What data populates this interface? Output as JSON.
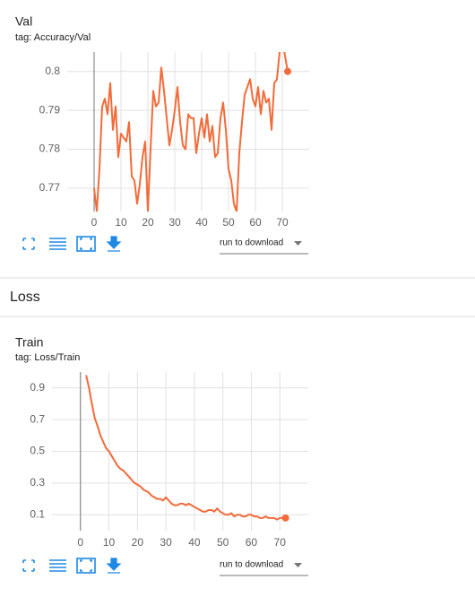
{
  "chart_data": [
    {
      "type": "line",
      "title": "Val",
      "subtitle": "tag: Accuracy/Val",
      "xlim": [
        -10,
        80
      ],
      "xticks": [
        0,
        10,
        20,
        30,
        40,
        50,
        60,
        70
      ],
      "ylim": [
        0.764,
        0.805
      ],
      "yticks": [
        0.77,
        0.78,
        0.79,
        0.8
      ],
      "grid": true,
      "series": [
        {
          "color": "#f26b3a",
          "x": [
            0,
            1,
            2,
            3,
            4,
            5,
            6,
            7,
            8,
            9,
            10,
            11,
            12,
            13,
            14,
            15,
            16,
            17,
            18,
            19,
            20,
            21,
            22,
            23,
            24,
            25,
            26,
            27,
            28,
            29,
            30,
            31,
            32,
            33,
            34,
            35,
            36,
            37,
            38,
            39,
            40,
            41,
            42,
            43,
            44,
            45,
            46,
            47,
            48,
            49,
            50,
            51,
            52,
            53,
            54,
            55,
            56,
            57,
            58,
            59,
            60,
            61,
            62,
            63,
            64,
            65,
            66,
            67,
            68,
            69,
            70,
            72
          ],
          "values": [
            0.77,
            0.764,
            0.775,
            0.791,
            0.793,
            0.789,
            0.797,
            0.785,
            0.791,
            0.778,
            0.784,
            0.783,
            0.782,
            0.787,
            0.773,
            0.772,
            0.766,
            0.771,
            0.778,
            0.782,
            0.764,
            0.78,
            0.795,
            0.791,
            0.792,
            0.801,
            0.795,
            0.788,
            0.781,
            0.785,
            0.79,
            0.796,
            0.787,
            0.781,
            0.78,
            0.789,
            0.788,
            0.788,
            0.779,
            0.784,
            0.788,
            0.783,
            0.789,
            0.782,
            0.786,
            0.778,
            0.779,
            0.788,
            0.792,
            0.785,
            0.775,
            0.772,
            0.766,
            0.764,
            0.779,
            0.787,
            0.794,
            0.796,
            0.798,
            0.793,
            0.791,
            0.796,
            0.789,
            0.795,
            0.792,
            0.793,
            0.785,
            0.797,
            0.798,
            0.805,
            0.808,
            0.8
          ]
        }
      ]
    },
    {
      "type": "line",
      "title": "Train",
      "subtitle": "tag: Loss/Train",
      "xlim": [
        -10,
        80
      ],
      "xticks": [
        0,
        10,
        20,
        30,
        40,
        50,
        60,
        70
      ],
      "ylim": [
        0,
        1.0
      ],
      "yticks": [
        0.1,
        0.3,
        0.5,
        0.7,
        0.9
      ],
      "grid": true,
      "series": [
        {
          "color": "#f26b3a",
          "x": [
            2,
            3,
            4,
            5,
            6,
            7,
            8,
            9,
            10,
            11,
            12,
            13,
            14,
            15,
            16,
            17,
            18,
            19,
            20,
            21,
            22,
            23,
            24,
            25,
            26,
            27,
            28,
            29,
            30,
            31,
            32,
            33,
            34,
            35,
            36,
            37,
            38,
            39,
            40,
            41,
            42,
            43,
            44,
            45,
            46,
            47,
            48,
            49,
            50,
            51,
            52,
            53,
            54,
            55,
            56,
            57,
            58,
            59,
            60,
            61,
            62,
            63,
            64,
            65,
            66,
            67,
            68,
            69,
            70,
            71,
            72
          ],
          "values": [
            0.98,
            0.9,
            0.8,
            0.71,
            0.66,
            0.6,
            0.56,
            0.52,
            0.5,
            0.47,
            0.44,
            0.41,
            0.39,
            0.38,
            0.36,
            0.34,
            0.32,
            0.3,
            0.29,
            0.28,
            0.26,
            0.25,
            0.24,
            0.22,
            0.21,
            0.2,
            0.2,
            0.19,
            0.21,
            0.19,
            0.17,
            0.16,
            0.16,
            0.17,
            0.17,
            0.16,
            0.17,
            0.16,
            0.15,
            0.14,
            0.13,
            0.12,
            0.12,
            0.13,
            0.13,
            0.12,
            0.14,
            0.12,
            0.11,
            0.1,
            0.1,
            0.11,
            0.09,
            0.1,
            0.1,
            0.09,
            0.09,
            0.1,
            0.1,
            0.09,
            0.09,
            0.08,
            0.08,
            0.09,
            0.08,
            0.08,
            0.08,
            0.07,
            0.08,
            0.08,
            0.08
          ]
        }
      ]
    }
  ],
  "section": "Loss",
  "run_label": "run to download"
}
